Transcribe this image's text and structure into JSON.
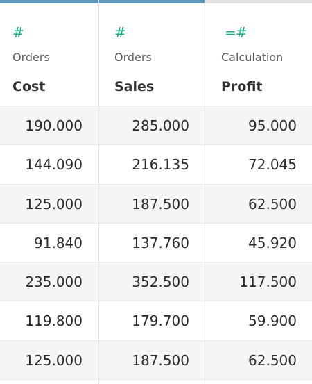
{
  "colors": {
    "bar_cost": "#5c95b8",
    "bar_sales": "#5c95b8",
    "bar_profit": "#e3e3e3",
    "number_icon": "#1aaf7c",
    "row_alt": "#f5f5f5"
  },
  "columns": [
    {
      "icon": "#",
      "icon_name": "number-type-icon",
      "source": "Orders",
      "name": "Cost",
      "values": [
        "190.000",
        "144.090",
        "125.000",
        "91.840",
        "235.000",
        "119.800",
        "125.000"
      ]
    },
    {
      "icon": "#",
      "icon_name": "number-type-icon",
      "source": "Orders",
      "name": "Sales",
      "values": [
        "285.000",
        "216.135",
        "187.500",
        "137.760",
        "352.500",
        "179.700",
        "187.500"
      ]
    },
    {
      "icon": "=#",
      "icon_name": "calculated-number-type-icon",
      "source": "Calculation",
      "name": "Profit",
      "values": [
        "95.000",
        "72.045",
        "62.500",
        "45.920",
        "117.500",
        "59.900",
        "62.500"
      ]
    }
  ]
}
